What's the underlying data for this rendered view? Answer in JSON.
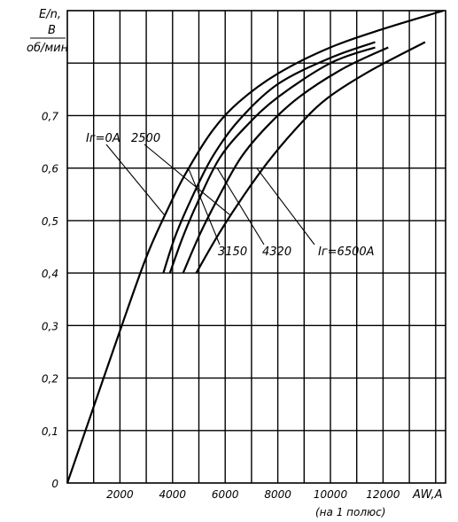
{
  "chart_data": {
    "type": "line",
    "ylabel_top": "E/n,",
    "ylabel_unit_num": "B",
    "ylabel_unit_den": "об/мин",
    "xlabel": "AW,A",
    "xlabel_sub": "(на 1 полюс)",
    "xlim": [
      0,
      14400
    ],
    "ylim": [
      0,
      0.9
    ],
    "grid": true,
    "x_ticks": [
      {
        "value": 2000,
        "label": "2000"
      },
      {
        "value": 4000,
        "label": "4000"
      },
      {
        "value": 6000,
        "label": "6000"
      },
      {
        "value": 8000,
        "label": "8000"
      },
      {
        "value": 10000,
        "label": "10000"
      },
      {
        "value": 12000,
        "label": "12000"
      }
    ],
    "y_ticks": [
      {
        "value": 0,
        "label": "0"
      },
      {
        "value": 0.1,
        "label": "0,1"
      },
      {
        "value": 0.2,
        "label": "0,2"
      },
      {
        "value": 0.3,
        "label": "0,3"
      },
      {
        "value": 0.4,
        "label": "0,4"
      },
      {
        "value": 0.5,
        "label": "0,5"
      },
      {
        "value": 0.6,
        "label": "0,6"
      },
      {
        "value": 0.7,
        "label": "0,7"
      }
    ],
    "series": [
      {
        "name": "Iг=0A",
        "label": "Iг=0A",
        "points": [
          [
            0,
            0
          ],
          [
            1000,
            0.145
          ],
          [
            2000,
            0.29
          ],
          [
            3000,
            0.43
          ],
          [
            3800,
            0.52
          ],
          [
            4500,
            0.59
          ],
          [
            5500,
            0.67
          ],
          [
            6500,
            0.725
          ],
          [
            8000,
            0.78
          ],
          [
            10000,
            0.83
          ],
          [
            12000,
            0.865
          ],
          [
            14300,
            0.9
          ]
        ]
      },
      {
        "name": "2500",
        "label": "2500",
        "points": [
          [
            3650,
            0.4
          ],
          [
            4100,
            0.47
          ],
          [
            4700,
            0.54
          ],
          [
            5500,
            0.62
          ],
          [
            6500,
            0.69
          ],
          [
            8000,
            0.76
          ],
          [
            10000,
            0.81
          ],
          [
            11700,
            0.84
          ]
        ]
      },
      {
        "name": "3150",
        "label": "3150",
        "points": [
          [
            3900,
            0.4
          ],
          [
            4400,
            0.47
          ],
          [
            5000,
            0.54
          ],
          [
            5800,
            0.62
          ],
          [
            6800,
            0.68
          ],
          [
            8000,
            0.735
          ],
          [
            10000,
            0.8
          ],
          [
            11700,
            0.83
          ]
        ]
      },
      {
        "name": "4320",
        "label": "4320",
        "points": [
          [
            4400,
            0.4
          ],
          [
            5000,
            0.47
          ],
          [
            5700,
            0.54
          ],
          [
            6600,
            0.62
          ],
          [
            7600,
            0.68
          ],
          [
            8800,
            0.735
          ],
          [
            10500,
            0.79
          ],
          [
            12200,
            0.83
          ]
        ]
      },
      {
        "name": "Iг=6500A",
        "label": "Iг=6500A",
        "points": [
          [
            4900,
            0.4
          ],
          [
            5700,
            0.47
          ],
          [
            6600,
            0.54
          ],
          [
            7600,
            0.61
          ],
          [
            8600,
            0.67
          ],
          [
            9800,
            0.73
          ],
          [
            11500,
            0.785
          ],
          [
            13600,
            0.84
          ]
        ]
      }
    ]
  }
}
